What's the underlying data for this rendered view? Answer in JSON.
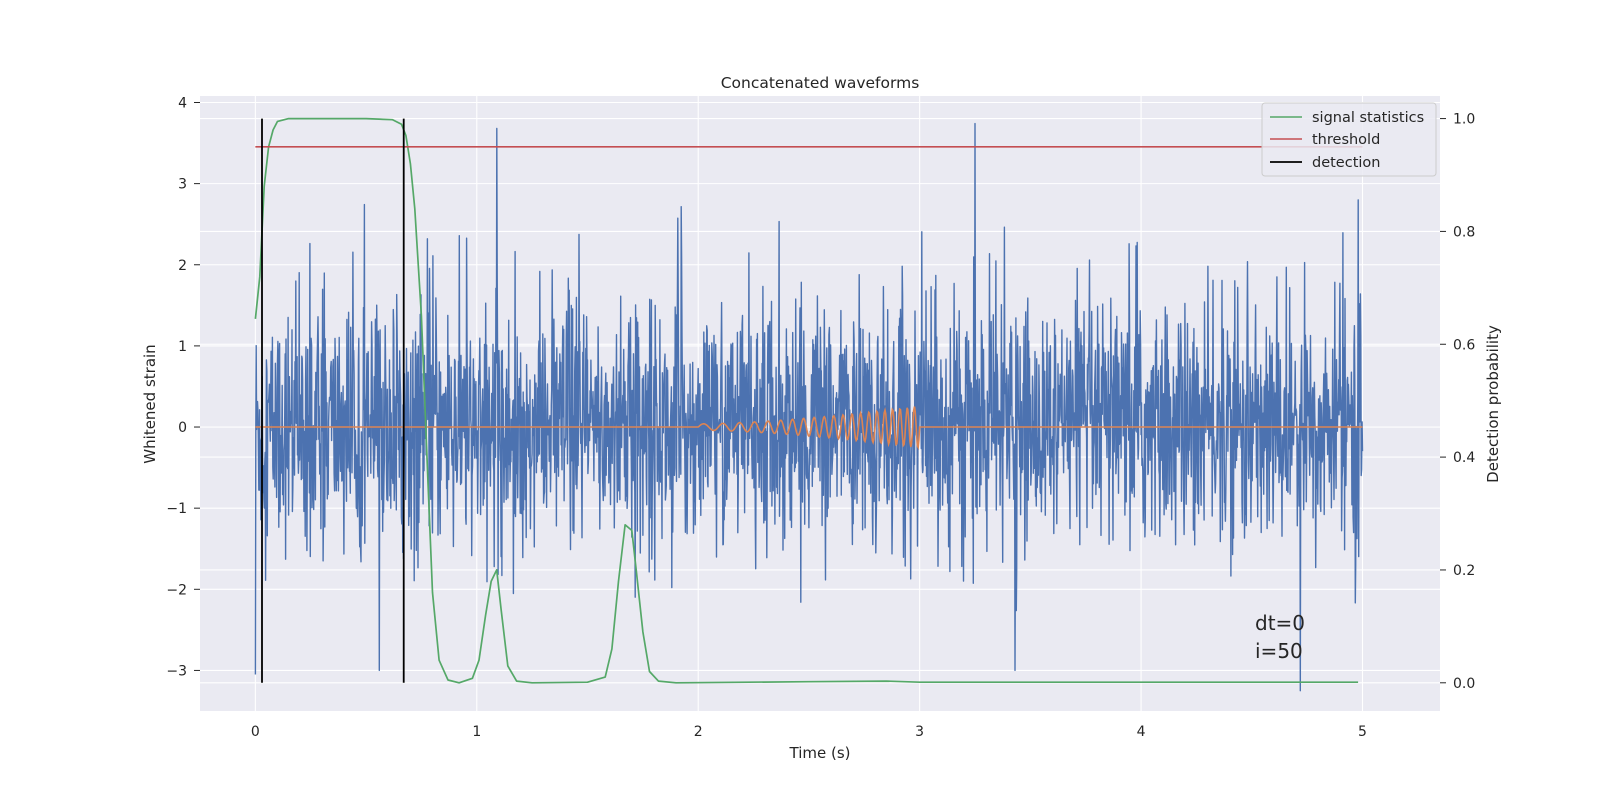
{
  "chart_data": {
    "type": "line",
    "title": "Concatenated waveforms",
    "xlabel": "Time (s)",
    "ylabel": "Whitened strain",
    "y2label": "Detection probability",
    "xlim": [
      -0.25,
      5.35
    ],
    "ylim": [
      -3.5,
      4.08
    ],
    "y2lim": [
      -0.05,
      1.04
    ],
    "xticks": [
      0,
      1,
      2,
      3,
      4,
      5
    ],
    "xtick_labels": [
      "0",
      "1",
      "2",
      "3",
      "4",
      "5"
    ],
    "yticks": [
      -3,
      -2,
      -1,
      0,
      1,
      2,
      3,
      4
    ],
    "ytick_labels": [
      "−3",
      "−2",
      "−1",
      "0",
      "1",
      "2",
      "3",
      "4"
    ],
    "y2ticks": [
      0.0,
      0.2,
      0.4,
      0.6,
      0.8,
      1.0
    ],
    "y2tick_labels": [
      "0.0",
      "0.2",
      "0.4",
      "0.6",
      "0.8",
      "1.0"
    ],
    "grid": true,
    "legend_position": "top-right",
    "legend": [
      {
        "label": "signal statistics",
        "color": "#55a868"
      },
      {
        "label": "threshold",
        "color": "#c44e52"
      },
      {
        "label": "detection",
        "color": "#000000"
      }
    ],
    "annotations": [
      "dt=0",
      "i=50"
    ],
    "series": [
      {
        "role": "noise",
        "axis": "left",
        "color": "#4c72b0",
        "x_range": [
          0,
          5
        ],
        "envelope_typical": [
          -1.9,
          2.6
        ],
        "spikes": [
          {
            "x": 1.09,
            "y": 3.68
          },
          {
            "x": 3.25,
            "y": 3.74
          },
          {
            "x": 4.98,
            "y": 2.8
          },
          {
            "x": 0.0,
            "y": -3.05
          },
          {
            "x": 4.72,
            "y": -3.25
          },
          {
            "x": 0.56,
            "y": -3.0
          },
          {
            "x": 3.43,
            "y": -3.0
          }
        ]
      },
      {
        "role": "injected waveform",
        "axis": "left",
        "color": "#dd8452",
        "chirp_start": 2.0,
        "chirp_end": 3.0,
        "chirp_max_amplitude": 0.26
      },
      {
        "name": "signal statistics",
        "axis": "right",
        "color": "#55a868",
        "x": [
          0.0,
          0.02,
          0.04,
          0.06,
          0.08,
          0.1,
          0.15,
          0.3,
          0.5,
          0.62,
          0.66,
          0.68,
          0.7,
          0.72,
          0.75,
          0.78,
          0.8,
          0.83,
          0.87,
          0.92,
          0.98,
          1.01,
          1.04,
          1.065,
          1.09,
          1.11,
          1.14,
          1.18,
          1.25,
          1.5,
          1.58,
          1.61,
          1.64,
          1.67,
          1.7,
          1.72,
          1.75,
          1.78,
          1.82,
          1.9,
          2.5,
          2.85,
          3.0,
          4.0,
          4.98
        ],
        "y": [
          0.645,
          0.72,
          0.88,
          0.95,
          0.98,
          0.995,
          1.0,
          1.0,
          1.0,
          0.998,
          0.99,
          0.97,
          0.92,
          0.84,
          0.65,
          0.35,
          0.16,
          0.04,
          0.005,
          0.0,
          0.008,
          0.04,
          0.12,
          0.18,
          0.2,
          0.13,
          0.03,
          0.003,
          0.0,
          0.001,
          0.01,
          0.06,
          0.18,
          0.28,
          0.27,
          0.2,
          0.09,
          0.02,
          0.003,
          0.0,
          0.002,
          0.003,
          0.001,
          0.001,
          0.001
        ]
      },
      {
        "name": "threshold",
        "axis": "right",
        "color": "#c44e52",
        "x": [
          0,
          5
        ],
        "y": [
          0.95,
          0.95
        ]
      }
    ],
    "detections": [
      0.03,
      0.67
    ]
  }
}
